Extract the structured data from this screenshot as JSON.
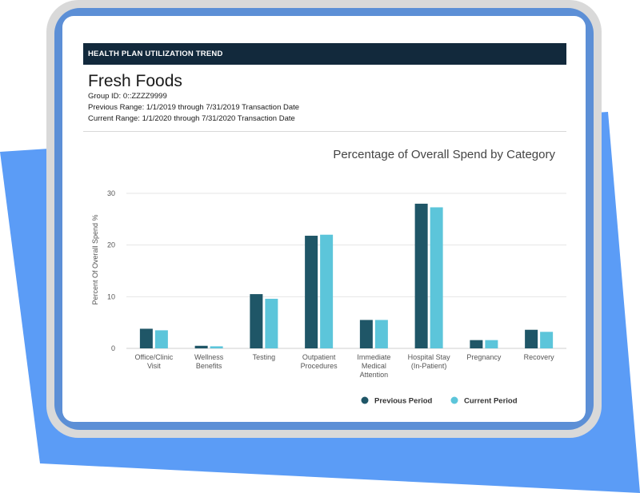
{
  "colors": {
    "background_shape": "#5b9cf6",
    "device_frame": "#d9d9d9",
    "device_inner": "#5c8fd6",
    "header_bar": "#12293c",
    "previous_period": "#1f5667",
    "current_period": "#5cc5da",
    "gridline": "#e6e6e6",
    "axis_text": "#555555"
  },
  "report": {
    "header": "HEALTH PLAN UTILIZATION TREND",
    "company": "Fresh Foods",
    "group_id": "Group ID: 0::ZZZZ9999",
    "previous_range": "Previous Range: 1/1/2019 through 7/31/2019 Transaction Date",
    "current_range": "Current Range: 1/1/2020 through 7/31/2020 Transaction Date"
  },
  "chart_data": {
    "type": "bar",
    "title": "Percentage of Overall Spend by Category",
    "xlabel": "",
    "ylabel": "Percent Of Overall Spend %",
    "ylim": [
      0,
      30
    ],
    "yticks": [
      "0",
      "10",
      "20",
      "30"
    ],
    "grid": true,
    "legend_position": "bottom-right",
    "categories": [
      [
        "Office/Clinic",
        "Visit"
      ],
      [
        "Wellness",
        "Benefits"
      ],
      [
        "Testing"
      ],
      [
        "Outpatient",
        "Procedures"
      ],
      [
        "Immediate",
        "Medical",
        "Attention"
      ],
      [
        "Hospital Stay",
        "(In-Patient)"
      ],
      [
        "Pregnancy"
      ],
      [
        "Recovery"
      ]
    ],
    "series": [
      {
        "name": "Previous Period",
        "values": [
          3.8,
          0.5,
          10.5,
          21.8,
          5.5,
          28.0,
          1.6,
          3.6
        ]
      },
      {
        "name": "Current Period",
        "values": [
          3.5,
          0.4,
          9.6,
          22.0,
          5.5,
          27.3,
          1.6,
          3.2
        ]
      }
    ]
  }
}
